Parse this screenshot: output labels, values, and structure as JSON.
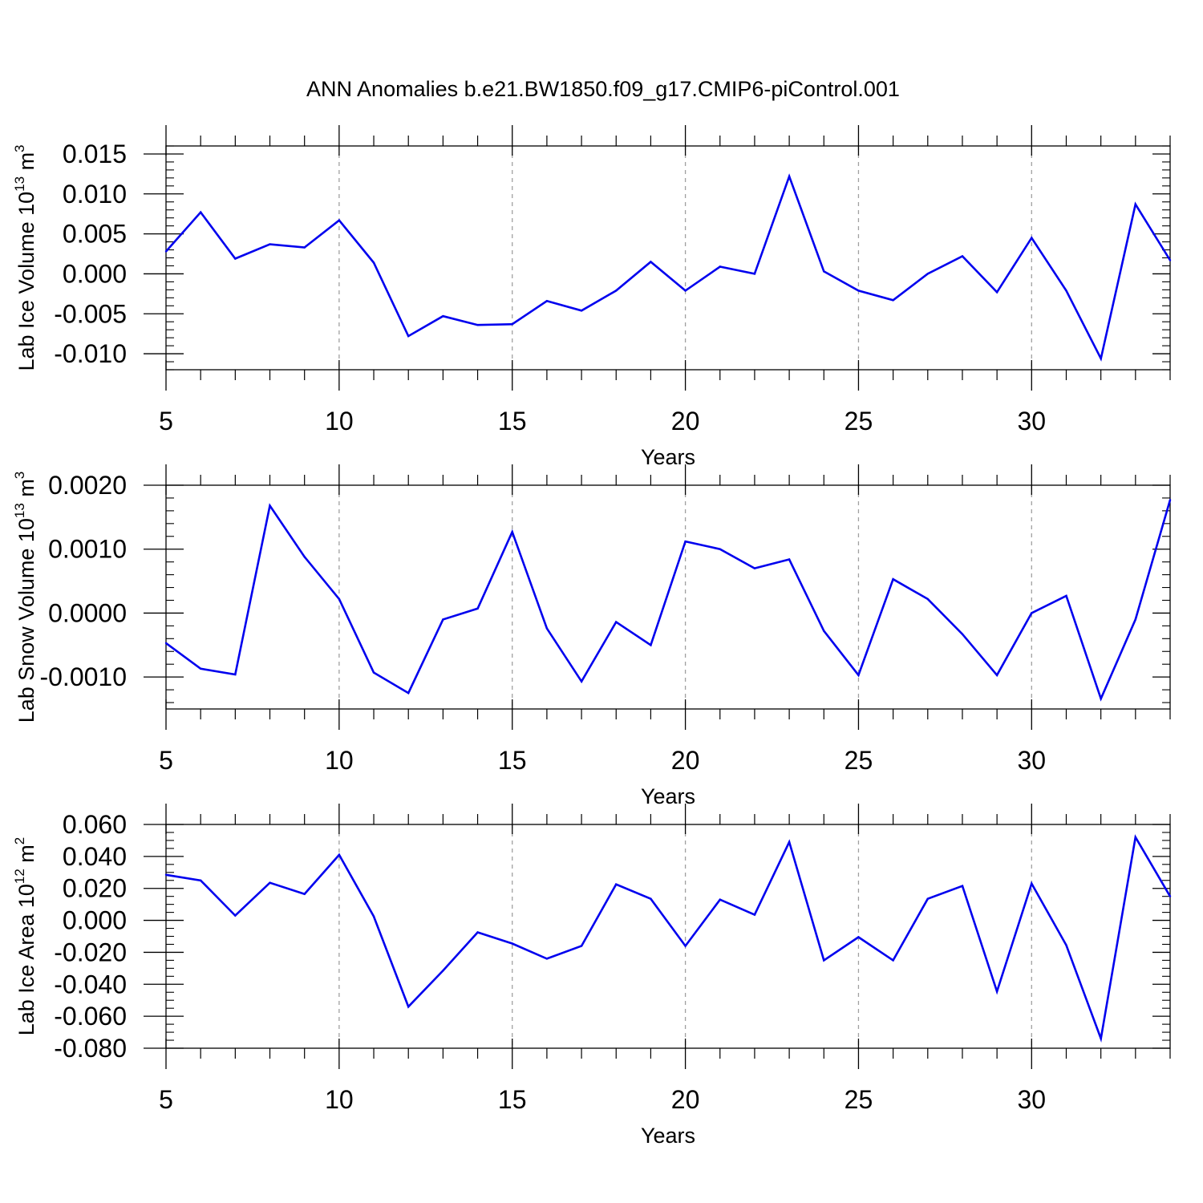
{
  "title": "ANN Anomalies b.e21.BW1850.f09_g17.CMIP6-piControl.001",
  "colors": {
    "series": "#0000ee",
    "grid": "#a0a0a0",
    "axis": "#000000"
  },
  "chart_data": [
    {
      "type": "line",
      "xlabel": "Years",
      "ylabel": {
        "text": "Lab Ice Volume 10",
        "exp": "13",
        "unit_text": " m",
        "unit_exp": "3"
      },
      "xlim": [
        5,
        34
      ],
      "ylim": [
        -0.012,
        0.016
      ],
      "xticks": [
        5,
        10,
        15,
        20,
        25,
        30
      ],
      "yticks": [
        -0.01,
        -0.005,
        0.0,
        0.005,
        0.01,
        0.015
      ],
      "ytick_labels": [
        "-0.010",
        "-0.005",
        "0.000",
        "0.005",
        "0.010",
        "0.015"
      ],
      "grid": "vertical dashed at major x ticks",
      "x": [
        5,
        6,
        7,
        8,
        9,
        10,
        11,
        12,
        13,
        14,
        15,
        16,
        17,
        18,
        19,
        20,
        21,
        22,
        23,
        24,
        25,
        26,
        27,
        28,
        29,
        30,
        31,
        32,
        33,
        34
      ],
      "y": [
        0.0028,
        0.0077,
        0.0019,
        0.0037,
        0.0033,
        0.0067,
        0.0014,
        -0.0078,
        -0.0053,
        -0.0064,
        -0.0063,
        -0.0034,
        -0.0046,
        -0.0021,
        0.0015,
        -0.0021,
        0.0009,
        0.0,
        0.0122,
        0.0003,
        -0.0021,
        -0.0033,
        0.0,
        0.0022,
        -0.0023,
        0.0045,
        -0.0021,
        -0.0106,
        0.0087,
        0.0017
      ]
    },
    {
      "type": "line",
      "xlabel": "Years",
      "ylabel": {
        "text": "Lab Snow Volume 10",
        "exp": "13",
        "unit_text": " m",
        "unit_exp": "3"
      },
      "xlim": [
        5,
        34
      ],
      "ylim": [
        -0.0015,
        0.002
      ],
      "xticks": [
        5,
        10,
        15,
        20,
        25,
        30
      ],
      "yticks": [
        -0.001,
        0.0,
        0.001,
        0.002
      ],
      "ytick_labels": [
        "-0.0010",
        "0.0000",
        "0.0010",
        "0.0020"
      ],
      "grid": "vertical dashed at major x ticks",
      "x": [
        5,
        6,
        7,
        8,
        9,
        10,
        11,
        12,
        13,
        14,
        15,
        16,
        17,
        18,
        19,
        20,
        21,
        22,
        23,
        24,
        25,
        26,
        27,
        28,
        29,
        30,
        31,
        32,
        33,
        34
      ],
      "y": [
        -0.00047,
        -0.00087,
        -0.00096,
        0.00168,
        0.00088,
        0.00022,
        -0.00093,
        -0.00125,
        -0.0001,
        7e-05,
        0.00127,
        -0.00024,
        -0.00107,
        -0.00014,
        -0.0005,
        0.00112,
        0.001,
        0.0007,
        0.00084,
        -0.00028,
        -0.00097,
        0.00053,
        0.00022,
        -0.00033,
        -0.00097,
        0.0,
        0.00027,
        -0.00134,
        -0.0001,
        0.00177
      ]
    },
    {
      "type": "line",
      "xlabel": "Years",
      "ylabel": {
        "text": "Lab Ice Area 10",
        "exp": "12",
        "unit_text": " m",
        "unit_exp": "2"
      },
      "xlim": [
        5,
        34
      ],
      "ylim": [
        -0.08,
        0.06
      ],
      "xticks": [
        5,
        10,
        15,
        20,
        25,
        30
      ],
      "yticks": [
        -0.08,
        -0.06,
        -0.04,
        -0.02,
        0.0,
        0.02,
        0.04,
        0.06
      ],
      "ytick_labels": [
        "-0.080",
        "-0.060",
        "-0.040",
        "-0.020",
        "0.000",
        "0.020",
        "0.040",
        "0.060"
      ],
      "grid": "vertical dashed at major x ticks",
      "x": [
        5,
        6,
        7,
        8,
        9,
        10,
        11,
        12,
        13,
        14,
        15,
        16,
        17,
        18,
        19,
        20,
        21,
        22,
        23,
        24,
        25,
        26,
        27,
        28,
        29,
        30,
        31,
        32,
        33,
        34
      ],
      "y": [
        0.0285,
        0.025,
        0.003,
        0.0235,
        0.0165,
        0.041,
        0.0025,
        -0.054,
        -0.0315,
        -0.0075,
        -0.0145,
        -0.024,
        -0.016,
        0.0225,
        0.0135,
        -0.016,
        0.013,
        0.0035,
        0.049,
        -0.025,
        -0.0105,
        -0.025,
        0.0135,
        0.0215,
        -0.0445,
        0.023,
        -0.0155,
        -0.074,
        0.052,
        0.015
      ]
    }
  ]
}
